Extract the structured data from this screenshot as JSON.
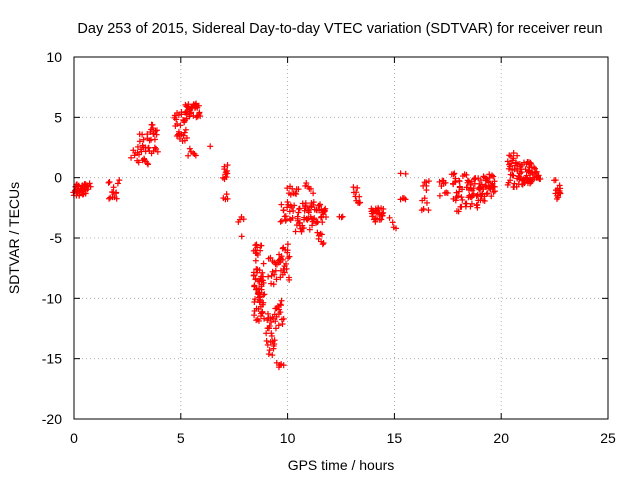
{
  "chart_data": {
    "type": "scatter",
    "title": "Day 253 of 2015, Sidereal Day-to-day VTEC variation (SDTVAR) for receiver reun",
    "xlabel": "GPS time / hours",
    "ylabel": "SDTVAR / TECUs",
    "xlim": [
      0,
      25
    ],
    "ylim": [
      -20,
      10
    ],
    "xticks": [
      "0",
      "5",
      "10",
      "15",
      "20",
      "25"
    ],
    "yticks": [
      "-20",
      "-15",
      "-10",
      "-5",
      "0",
      "5",
      "10"
    ],
    "grid": true,
    "marker": "+",
    "series_color": "#ff0000",
    "clusters": [
      {
        "x0": 0.0,
        "x1": 0.6,
        "y0": -1.5,
        "y1": -0.5,
        "n": 40
      },
      {
        "x0": 0.55,
        "x1": 0.75,
        "y0": -1.2,
        "y1": -0.3,
        "n": 6
      },
      {
        "x0": 1.6,
        "x1": 2.1,
        "y0": -1.8,
        "y1": -0.2,
        "n": 14
      },
      {
        "x0": 2.7,
        "x1": 3.0,
        "y0": 0.8,
        "y1": 2.6,
        "n": 6
      },
      {
        "x0": 3.0,
        "x1": 3.5,
        "y0": 1.0,
        "y1": 3.8,
        "n": 22
      },
      {
        "x0": 3.5,
        "x1": 3.9,
        "y0": 2.0,
        "y1": 4.5,
        "n": 20
      },
      {
        "x0": 4.7,
        "x1": 5.3,
        "y0": 3.0,
        "y1": 5.6,
        "n": 30
      },
      {
        "x0": 5.2,
        "x1": 5.9,
        "y0": 5.0,
        "y1": 6.2,
        "n": 34
      },
      {
        "x0": 5.35,
        "x1": 5.7,
        "y0": 1.8,
        "y1": 2.5,
        "n": 6
      },
      {
        "x0": 6.3,
        "x1": 6.45,
        "y0": 2.4,
        "y1": 2.6,
        "n": 1
      },
      {
        "x0": 7.0,
        "x1": 7.2,
        "y0": -0.5,
        "y1": 1.3,
        "n": 10
      },
      {
        "x0": 7.0,
        "x1": 7.2,
        "y0": -1.8,
        "y1": -1.2,
        "n": 4
      },
      {
        "x0": 7.7,
        "x1": 7.95,
        "y0": -3.8,
        "y1": -3.2,
        "n": 4
      },
      {
        "x0": 7.7,
        "x1": 7.95,
        "y0": -4.9,
        "y1": -4.7,
        "n": 1
      },
      {
        "x0": 8.4,
        "x1": 8.9,
        "y0": -12.0,
        "y1": -5.5,
        "n": 70
      },
      {
        "x0": 9.0,
        "x1": 9.4,
        "y0": -14.8,
        "y1": -11.0,
        "n": 26
      },
      {
        "x0": 9.1,
        "x1": 9.6,
        "y0": -9.0,
        "y1": -6.5,
        "n": 16
      },
      {
        "x0": 9.4,
        "x1": 9.8,
        "y0": -12.5,
        "y1": -10.0,
        "n": 16
      },
      {
        "x0": 9.5,
        "x1": 9.8,
        "y0": -16.0,
        "y1": -15.3,
        "n": 5
      },
      {
        "x0": 9.6,
        "x1": 10.1,
        "y0": -8.5,
        "y1": -5.5,
        "n": 24
      },
      {
        "x0": 9.7,
        "x1": 10.3,
        "y0": -3.8,
        "y1": -2.0,
        "n": 20
      },
      {
        "x0": 10.0,
        "x1": 10.5,
        "y0": -1.5,
        "y1": -0.7,
        "n": 10
      },
      {
        "x0": 10.4,
        "x1": 11.2,
        "y0": -4.5,
        "y1": -2.0,
        "n": 40
      },
      {
        "x0": 10.8,
        "x1": 11.2,
        "y0": -1.3,
        "y1": -0.4,
        "n": 6
      },
      {
        "x0": 11.2,
        "x1": 11.8,
        "y0": -4.0,
        "y1": -2.0,
        "n": 24
      },
      {
        "x0": 11.4,
        "x1": 11.7,
        "y0": -6.3,
        "y1": -4.5,
        "n": 8
      },
      {
        "x0": 12.4,
        "x1": 12.6,
        "y0": -3.3,
        "y1": -2.7,
        "n": 3
      },
      {
        "x0": 13.1,
        "x1": 13.4,
        "y0": -2.3,
        "y1": -0.7,
        "n": 10
      },
      {
        "x0": 13.9,
        "x1": 14.5,
        "y0": -3.8,
        "y1": -2.5,
        "n": 30
      },
      {
        "x0": 14.8,
        "x1": 15.1,
        "y0": -4.2,
        "y1": -2.2,
        "n": 4
      },
      {
        "x0": 15.3,
        "x1": 15.5,
        "y0": -1.9,
        "y1": -1.3,
        "n": 4
      },
      {
        "x0": 15.3,
        "x1": 15.5,
        "y0": 0.0,
        "y1": 0.5,
        "n": 2
      },
      {
        "x0": 16.3,
        "x1": 16.6,
        "y0": -2.7,
        "y1": -0.2,
        "n": 12
      },
      {
        "x0": 17.1,
        "x1": 17.5,
        "y0": -1.6,
        "y1": -0.2,
        "n": 10
      },
      {
        "x0": 17.7,
        "x1": 18.2,
        "y0": -2.8,
        "y1": 0.4,
        "n": 26
      },
      {
        "x0": 18.3,
        "x1": 19.0,
        "y0": -2.6,
        "y1": 0.3,
        "n": 40
      },
      {
        "x0": 19.0,
        "x1": 19.7,
        "y0": -2.0,
        "y1": 0.3,
        "n": 40
      },
      {
        "x0": 20.3,
        "x1": 20.8,
        "y0": -0.8,
        "y1": 2.1,
        "n": 30
      },
      {
        "x0": 20.8,
        "x1": 21.4,
        "y0": -0.6,
        "y1": 1.3,
        "n": 40
      },
      {
        "x0": 21.3,
        "x1": 21.8,
        "y0": -0.3,
        "y1": 0.9,
        "n": 26
      },
      {
        "x0": 22.5,
        "x1": 22.8,
        "y0": -1.8,
        "y1": 0.0,
        "n": 14
      }
    ]
  }
}
